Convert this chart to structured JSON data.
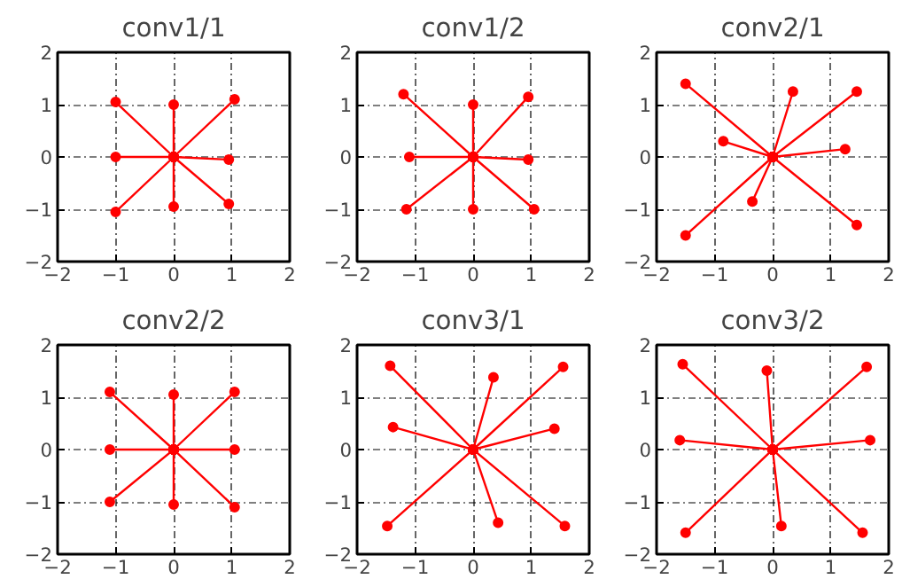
{
  "chart_data": [
    {
      "type": "line",
      "title": "conv1/1",
      "xlim": [
        -2,
        2
      ],
      "ylim": [
        -2,
        2
      ],
      "xticks": [
        -2,
        -1,
        0,
        1,
        2
      ],
      "yticks": [
        -2,
        -1,
        0,
        1,
        2
      ],
      "grid": true,
      "marker": "circle",
      "line_style": "solid",
      "series": [
        {
          "color": "#ff0000",
          "x": [
            0,
            -1,
            0,
            0,
            0,
            1.05,
            0,
            -1,
            0,
            0.95,
            0,
            -1,
            0,
            0,
            0,
            0.95
          ],
          "values": [
            0,
            1.05,
            0,
            1,
            0,
            1.1,
            0,
            0,
            0,
            -0.05,
            0,
            -1.05,
            0,
            -0.95,
            0,
            -0.9
          ]
        }
      ]
    },
    {
      "type": "line",
      "title": "conv1/2",
      "xlim": [
        -2,
        2
      ],
      "ylim": [
        -2,
        2
      ],
      "xticks": [
        -2,
        -1,
        0,
        1,
        2
      ],
      "yticks": [
        -2,
        -1,
        0,
        1,
        2
      ],
      "grid": true,
      "marker": "circle",
      "line_style": "solid",
      "series": [
        {
          "color": "#ff0000",
          "x": [
            0,
            -1.2,
            0,
            0,
            0,
            0.95,
            0,
            -1.1,
            0,
            0.95,
            0,
            -1.15,
            0,
            0,
            0,
            1.05
          ],
          "values": [
            0,
            1.2,
            0,
            1,
            0,
            1.15,
            0,
            0,
            0,
            -0.05,
            0,
            -1,
            0,
            -1,
            0,
            -1
          ]
        }
      ]
    },
    {
      "type": "line",
      "title": "conv2/1",
      "xlim": [
        -2,
        2
      ],
      "ylim": [
        -2,
        2
      ],
      "xticks": [
        -2,
        -1,
        0,
        1,
        2
      ],
      "yticks": [
        -2,
        -1,
        0,
        1,
        2
      ],
      "grid": true,
      "marker": "circle",
      "line_style": "solid",
      "series": [
        {
          "color": "#ff0000",
          "x": [
            0,
            -1.5,
            0,
            0.35,
            0,
            1.45,
            0,
            -0.85,
            0,
            1.25,
            0,
            -0.35,
            0,
            -1.5,
            0,
            1.45
          ],
          "values": [
            0,
            1.4,
            0,
            1.25,
            0,
            1.25,
            0,
            0.3,
            0,
            0.15,
            0,
            -0.85,
            0,
            -1.5,
            0,
            -1.3
          ]
        }
      ]
    },
    {
      "type": "line",
      "title": "conv2/2",
      "xlim": [
        -2,
        2
      ],
      "ylim": [
        -2,
        2
      ],
      "xticks": [
        -2,
        -1,
        0,
        1,
        2
      ],
      "yticks": [
        -2,
        -1,
        0,
        1,
        2
      ],
      "grid": true,
      "marker": "circle",
      "line_style": "solid",
      "series": [
        {
          "color": "#ff0000",
          "x": [
            0,
            -1.1,
            0,
            0,
            0,
            1.05,
            0,
            -1.1,
            0,
            1.05,
            0,
            -1.1,
            0,
            0,
            0,
            1.05
          ],
          "values": [
            0,
            1.1,
            0,
            1.05,
            0,
            1.1,
            0,
            0,
            0,
            0,
            0,
            -1,
            0,
            -1.05,
            0,
            -1.1
          ]
        }
      ]
    },
    {
      "type": "line",
      "title": "conv3/1",
      "xlim": [
        -2,
        2
      ],
      "ylim": [
        -2,
        2
      ],
      "xticks": [
        -2,
        -1,
        0,
        1,
        2
      ],
      "yticks": [
        -2,
        -1,
        0,
        1,
        2
      ],
      "grid": true,
      "marker": "circle",
      "line_style": "solid",
      "series": [
        {
          "color": "#ff0000",
          "x": [
            0,
            -1.43,
            0,
            0.35,
            0,
            1.55,
            0,
            -1.38,
            0,
            1.4,
            0,
            -1.48,
            0,
            0.43,
            0,
            1.58
          ],
          "values": [
            0,
            1.6,
            0,
            1.38,
            0,
            1.58,
            0,
            0.43,
            0,
            0.4,
            0,
            -1.46,
            0,
            -1.4,
            0,
            -1.46
          ]
        }
      ]
    },
    {
      "type": "line",
      "title": "conv3/2",
      "xlim": [
        -2,
        2
      ],
      "ylim": [
        -2,
        2
      ],
      "xticks": [
        -2,
        -1,
        0,
        1,
        2
      ],
      "yticks": [
        -2,
        -1,
        0,
        1,
        2
      ],
      "grid": true,
      "marker": "circle",
      "line_style": "solid",
      "series": [
        {
          "color": "#ff0000",
          "x": [
            0,
            -1.55,
            0,
            -0.1,
            0,
            1.62,
            0,
            -1.6,
            0,
            1.68,
            0,
            -1.5,
            0,
            0.15,
            0,
            1.55
          ],
          "values": [
            0,
            1.63,
            0,
            1.51,
            0,
            1.58,
            0,
            0.18,
            0,
            0.18,
            0,
            -1.59,
            0,
            -1.46,
            0,
            -1.59
          ]
        }
      ]
    }
  ]
}
